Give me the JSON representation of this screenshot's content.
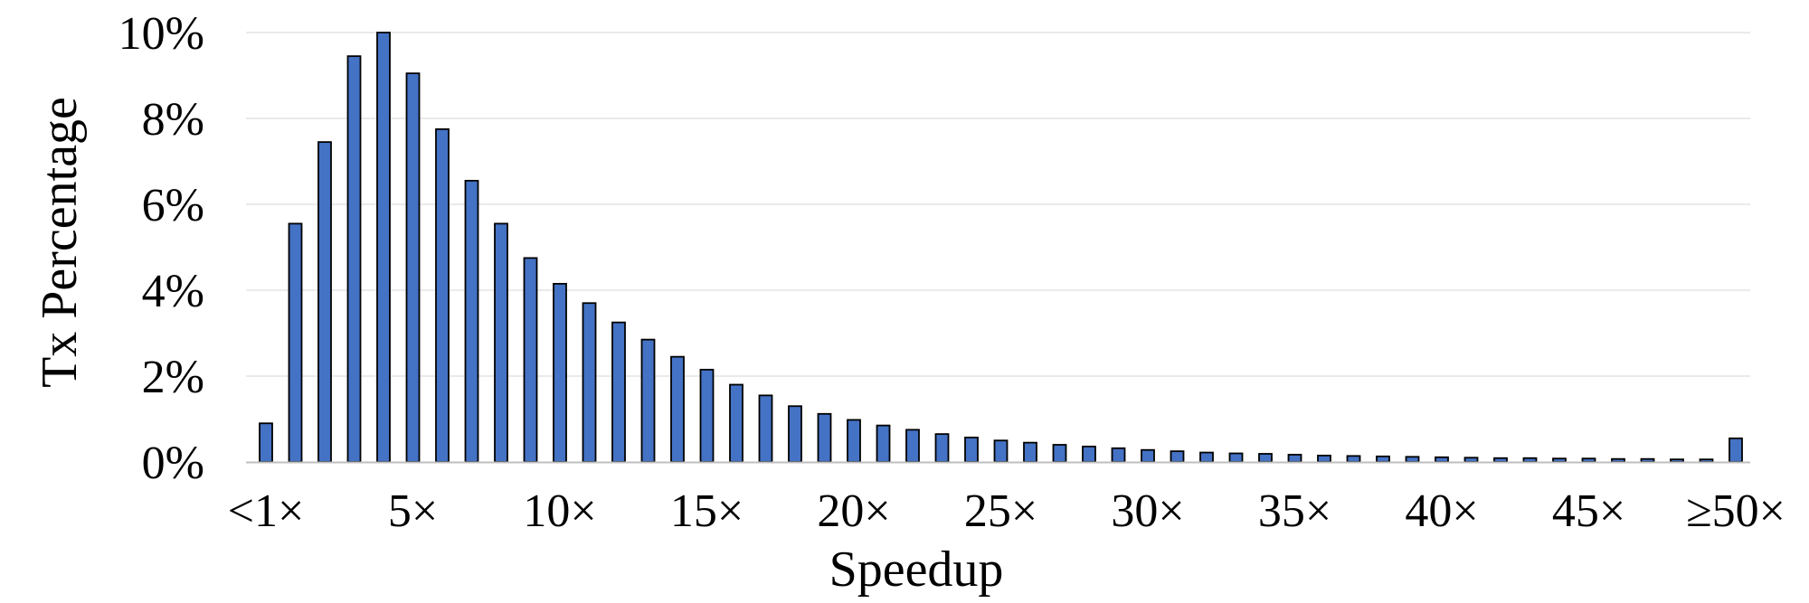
{
  "chart_data": {
    "type": "bar",
    "xlabel": "Speedup",
    "ylabel": "Tx Percentage",
    "ylim": [
      0,
      10
    ],
    "y_ticks": [
      {
        "value": 0,
        "label": "0%"
      },
      {
        "value": 2,
        "label": "2%"
      },
      {
        "value": 4,
        "label": "4%"
      },
      {
        "value": 6,
        "label": "6%"
      },
      {
        "value": 8,
        "label": "8%"
      },
      {
        "value": 10,
        "label": "10%"
      }
    ],
    "x_tick_labels": [
      {
        "index": 0,
        "label": "<1×"
      },
      {
        "index": 5,
        "label": "5×"
      },
      {
        "index": 10,
        "label": "10×"
      },
      {
        "index": 15,
        "label": "15×"
      },
      {
        "index": 20,
        "label": "20×"
      },
      {
        "index": 25,
        "label": "25×"
      },
      {
        "index": 30,
        "label": "30×"
      },
      {
        "index": 35,
        "label": "35×"
      },
      {
        "index": 40,
        "label": "40×"
      },
      {
        "index": 45,
        "label": "45×"
      },
      {
        "index": 50,
        "label": "≥50×"
      }
    ],
    "categories": [
      "<1×",
      "1×",
      "2×",
      "3×",
      "4×",
      "5×",
      "6×",
      "7×",
      "8×",
      "9×",
      "10×",
      "11×",
      "12×",
      "13×",
      "14×",
      "15×",
      "16×",
      "17×",
      "18×",
      "19×",
      "20×",
      "21×",
      "22×",
      "23×",
      "24×",
      "25×",
      "26×",
      "27×",
      "28×",
      "29×",
      "30×",
      "31×",
      "32×",
      "33×",
      "34×",
      "35×",
      "36×",
      "37×",
      "38×",
      "39×",
      "40×",
      "41×",
      "42×",
      "43×",
      "44×",
      "45×",
      "46×",
      "47×",
      "48×",
      "49×",
      "≥50×"
    ],
    "values": [
      0.9,
      5.55,
      7.45,
      9.45,
      10.0,
      9.05,
      7.75,
      6.55,
      5.55,
      4.75,
      4.15,
      3.7,
      3.25,
      2.85,
      2.45,
      2.15,
      1.8,
      1.55,
      1.3,
      1.12,
      0.98,
      0.85,
      0.75,
      0.65,
      0.57,
      0.5,
      0.45,
      0.4,
      0.36,
      0.32,
      0.28,
      0.25,
      0.22,
      0.2,
      0.19,
      0.17,
      0.15,
      0.14,
      0.13,
      0.12,
      0.11,
      0.1,
      0.09,
      0.09,
      0.08,
      0.08,
      0.07,
      0.07,
      0.06,
      0.06,
      0.55
    ],
    "grid": true,
    "legend": "none",
    "colors": {
      "bar_fill": "#4472C4",
      "bar_stroke": "#000000",
      "grid": "#e3e3e3",
      "axis": "#bfbfbf"
    }
  }
}
